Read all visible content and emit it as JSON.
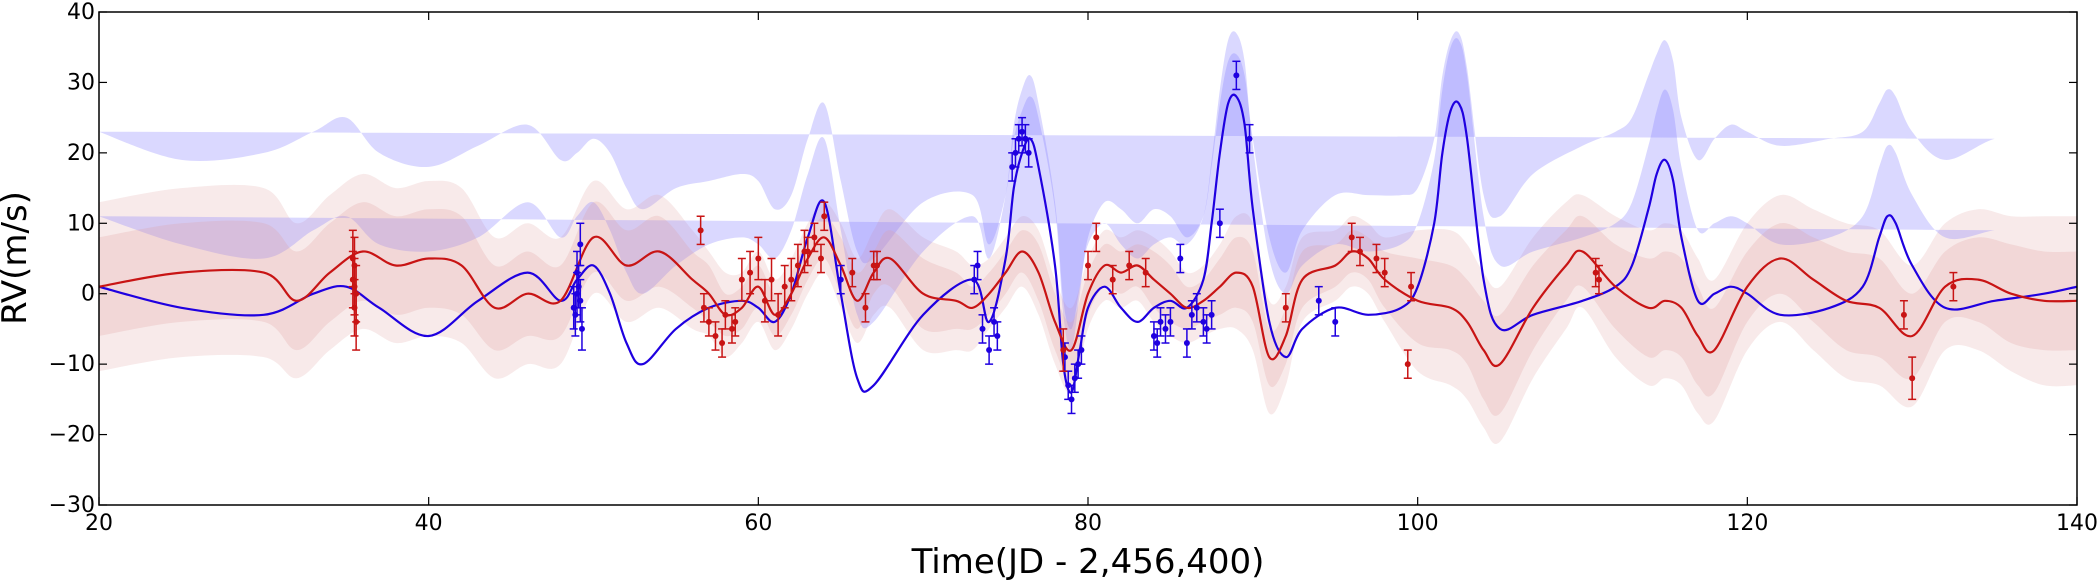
{
  "chart_data": {
    "type": "line",
    "title": "",
    "xlabel": "Time(JD - 2,456,400)",
    "ylabel": "RV(m/s)",
    "xlim": [
      20,
      140
    ],
    "ylim": [
      -30,
      40
    ],
    "xticks": [
      20,
      40,
      60,
      80,
      100,
      120,
      140
    ],
    "yticks": [
      -30,
      -20,
      -10,
      0,
      10,
      20,
      30,
      40
    ],
    "grid": false,
    "legend": "none",
    "series": [
      {
        "name": "blue model",
        "color": "#1f00e0",
        "band_color": "#7b74ff",
        "x": [
          20,
          25,
          30,
          33,
          35,
          37,
          40,
          43,
          46,
          48,
          49,
          50,
          51,
          52,
          53,
          55,
          57,
          59,
          60,
          61,
          62,
          63,
          64,
          65,
          66,
          67,
          70,
          73,
          74,
          75,
          75.5,
          76,
          76.5,
          77,
          78,
          78.5,
          79,
          79.5,
          80,
          81,
          82,
          83,
          84,
          85,
          86,
          87,
          87.5,
          88,
          88.5,
          89,
          89.5,
          90,
          91,
          92,
          93,
          95,
          97,
          99,
          100,
          101,
          101.5,
          102,
          102.5,
          103,
          104,
          105,
          107,
          110,
          112,
          113,
          114,
          114.5,
          115,
          115.5,
          116,
          117,
          118,
          119,
          120,
          122,
          125,
          127,
          128,
          128.5,
          129,
          130,
          132,
          135,
          138,
          140
        ],
        "y": [
          1,
          -2,
          -3,
          0,
          1,
          -2,
          -6,
          -1,
          3,
          -1,
          2,
          4,
          0,
          -7,
          -10,
          -5,
          -2,
          -1,
          -2,
          -4,
          0,
          8,
          13,
          0,
          -12,
          -13,
          -3,
          2,
          -4,
          5,
          15,
          20,
          22,
          18,
          4,
          -10,
          -14,
          -8,
          -2,
          1,
          -2,
          -4,
          -2,
          -1,
          -2,
          2,
          10,
          20,
          27,
          28,
          24,
          12,
          -4,
          -9,
          -5,
          -2,
          -3,
          -2,
          1,
          10,
          20,
          26,
          27,
          22,
          2,
          -5,
          -3,
          -1,
          1,
          4,
          12,
          17,
          19,
          16,
          8,
          -1,
          0,
          1,
          0,
          -3,
          -2,
          1,
          8,
          11,
          10,
          4,
          -2,
          -1,
          0,
          1
        ],
        "band1": [
          10,
          9,
          8,
          9,
          10,
          9,
          12,
          9,
          10,
          9,
          9,
          9,
          9,
          10,
          10,
          9,
          9,
          9,
          9,
          9,
          9,
          9,
          9,
          9,
          9,
          9,
          9,
          9,
          9,
          9,
          9,
          9,
          9,
          9,
          9,
          9,
          9,
          9,
          9,
          9,
          9,
          9,
          9,
          9,
          9,
          9,
          9,
          9,
          9,
          9,
          9,
          9,
          9,
          9,
          9,
          9,
          9,
          9,
          9,
          9,
          9,
          9,
          9,
          9,
          9,
          9,
          9,
          9,
          9,
          9,
          9,
          9,
          10,
          10,
          10,
          10,
          10,
          10,
          10,
          10,
          10,
          10,
          10,
          10,
          10,
          10,
          10,
          10,
          10
        ],
        "band2": [
          22,
          21,
          23,
          23,
          24,
          22,
          24,
          22,
          21,
          20,
          18,
          18,
          20,
          22,
          22,
          20,
          18,
          18,
          18,
          16,
          14,
          14,
          14,
          16,
          18,
          18,
          16,
          12,
          11,
          9,
          7,
          6,
          6,
          7,
          8,
          7,
          6,
          8,
          10,
          12,
          14,
          14,
          14,
          12,
          10,
          9,
          8,
          7,
          6,
          6,
          7,
          10,
          12,
          12,
          14,
          16,
          17,
          16,
          14,
          12,
          11,
          10,
          10,
          10,
          12,
          16,
          20,
          22,
          22,
          21,
          19,
          17,
          17,
          17,
          17,
          20,
          22,
          23,
          23,
          24,
          24,
          22,
          19,
          18,
          18,
          19,
          21,
          23,
          23
        ]
      },
      {
        "name": "red model",
        "color": "#c81414",
        "band_color": "#e0a0a0",
        "x": [
          20,
          25,
          30,
          32,
          34,
          36,
          38,
          40,
          42,
          44,
          46,
          48,
          50,
          52,
          54,
          56,
          57,
          58,
          59,
          60,
          61,
          62,
          63,
          64,
          65,
          66,
          67,
          68,
          70,
          72,
          73,
          74,
          75,
          76,
          77,
          78,
          79,
          80,
          81,
          82,
          83,
          84,
          85,
          86,
          87,
          88,
          89,
          90,
          91,
          92,
          93,
          95,
          96,
          97,
          98,
          100,
          102,
          103,
          104,
          105,
          107,
          109,
          110,
          112,
          114,
          115,
          116,
          117,
          118,
          120,
          122,
          124,
          126,
          128,
          130,
          132,
          134,
          136,
          138,
          140
        ],
        "y": [
          1,
          3,
          3,
          -1,
          3,
          6,
          4,
          5,
          4,
          -2,
          0,
          -1,
          8,
          4,
          6,
          2,
          0,
          -3,
          -2,
          1,
          -3,
          0,
          5,
          8,
          4,
          -1,
          3,
          5,
          0,
          -1,
          -2,
          0,
          3,
          6,
          3,
          -4,
          -8,
          0,
          4,
          3,
          4,
          2,
          0,
          -2,
          -1,
          1,
          3,
          1,
          -9,
          -6,
          2,
          4,
          6,
          5,
          2,
          -1,
          -2,
          -4,
          -8,
          -10,
          -2,
          4,
          6,
          1,
          -2,
          -1,
          -2,
          -6,
          -8,
          1,
          5,
          2,
          -1,
          -2,
          -6,
          1,
          2,
          0,
          -1,
          -1
        ],
        "band1": [
          7,
          7,
          7,
          7,
          7,
          7,
          7,
          7,
          7,
          6,
          6,
          5,
          5,
          5,
          5,
          4,
          4,
          3,
          3,
          3,
          3,
          3,
          3,
          3,
          4,
          4,
          3,
          4,
          5,
          4,
          3,
          3,
          3,
          3,
          4,
          4,
          4,
          3,
          3,
          3,
          3,
          4,
          4,
          3,
          3,
          4,
          5,
          5,
          4,
          4,
          4,
          3,
          3,
          3,
          4,
          6,
          6,
          6,
          7,
          7,
          6,
          5,
          5,
          6,
          7,
          7,
          7,
          7,
          6,
          5,
          5,
          6,
          7,
          7,
          6,
          5,
          6,
          7,
          7,
          7
        ],
        "band2": [
          12,
          12,
          12,
          11,
          11,
          11,
          11,
          11,
          11,
          10,
          10,
          9,
          8,
          8,
          8,
          7,
          6,
          6,
          5,
          5,
          5,
          5,
          5,
          5,
          6,
          6,
          6,
          7,
          8,
          7,
          6,
          5,
          5,
          5,
          6,
          6,
          6,
          5,
          5,
          5,
          5,
          6,
          6,
          5,
          5,
          6,
          8,
          9,
          8,
          7,
          6,
          5,
          5,
          5,
          6,
          10,
          11,
          11,
          11,
          11,
          10,
          9,
          8,
          10,
          11,
          11,
          11,
          11,
          10,
          9,
          9,
          10,
          11,
          11,
          10,
          9,
          10,
          11,
          12,
          12
        ]
      }
    ],
    "points": [
      {
        "name": "blue observations",
        "color": "#1f00e0",
        "x": [
          49,
          49.1,
          49.2,
          48.9,
          49.3,
          49.0,
          49.2,
          48.8,
          73.1,
          73.3,
          73.6,
          74,
          74.3,
          74.5,
          75.4,
          75.6,
          75.8,
          76,
          76.2,
          76.4,
          78.6,
          78.8,
          79,
          79.2,
          79.4,
          79.6,
          84,
          84.2,
          84.4,
          84.7,
          85,
          85.6,
          86,
          86.3,
          86.6,
          87,
          87.2,
          87.5,
          88,
          89,
          89.8,
          94,
          95,
          65
        ],
        "y": [
          0,
          1,
          -1,
          -3,
          -5,
          3,
          7,
          -2,
          2,
          4,
          -5,
          -8,
          -4,
          -6,
          18,
          20,
          22,
          23,
          22,
          20,
          -9,
          -13,
          -15,
          -12,
          -10,
          -8,
          -6,
          -7,
          -4,
          -5,
          -4,
          5,
          -7,
          -3,
          -2,
          -4,
          -5,
          -3,
          10,
          31,
          22,
          -1,
          -4,
          2
        ],
        "err": [
          3,
          3,
          3,
          3,
          3,
          3,
          3,
          3,
          2,
          2,
          2,
          2,
          2,
          2,
          2,
          2,
          2,
          2,
          2,
          2,
          2,
          2,
          2,
          2,
          2,
          2,
          2,
          2,
          2,
          2,
          2,
          2,
          2,
          2,
          2,
          2,
          2,
          2,
          2,
          2,
          2,
          2,
          2,
          2
        ]
      },
      {
        "name": "red observations",
        "color": "#c81414",
        "x": [
          35.4,
          35.5,
          35.6,
          35.5,
          35.4,
          35.6,
          35.5,
          56.5,
          56.7,
          57,
          57.4,
          57.8,
          58,
          58.4,
          58.6,
          59,
          59.5,
          60,
          60.4,
          60.8,
          61.2,
          61.6,
          62,
          62.4,
          62.8,
          63,
          63.4,
          63.8,
          64,
          65.7,
          66.5,
          67,
          67.2,
          78.5,
          80,
          80.5,
          81.5,
          82.5,
          83.5,
          92,
          96,
          96.5,
          97.5,
          98,
          99.4,
          99.6,
          110.8,
          111,
          129.5,
          130,
          132.5
        ],
        "y": [
          2,
          4,
          0,
          -2,
          5,
          -4,
          1,
          9,
          -2,
          -4,
          -6,
          -7,
          -3,
          -5,
          -4,
          2,
          3,
          5,
          -1,
          2,
          -3,
          1,
          2,
          4,
          6,
          6,
          8,
          5,
          11,
          3,
          -2,
          4,
          4,
          -8,
          4,
          8,
          2,
          4,
          3,
          -2,
          8,
          6,
          5,
          3,
          -10,
          1,
          3,
          2,
          -3,
          -12,
          1
        ],
        "err": [
          4,
          4,
          4,
          4,
          4,
          4,
          4,
          2,
          2,
          2,
          2,
          2,
          2,
          2,
          2,
          3,
          3,
          3,
          3,
          3,
          3,
          3,
          3,
          3,
          3,
          2,
          2,
          2,
          2,
          2,
          2,
          2,
          2,
          3,
          2,
          2,
          2,
          2,
          2,
          2,
          2,
          2,
          2,
          2,
          2,
          2,
          2,
          2,
          2,
          3,
          2
        ]
      }
    ]
  }
}
